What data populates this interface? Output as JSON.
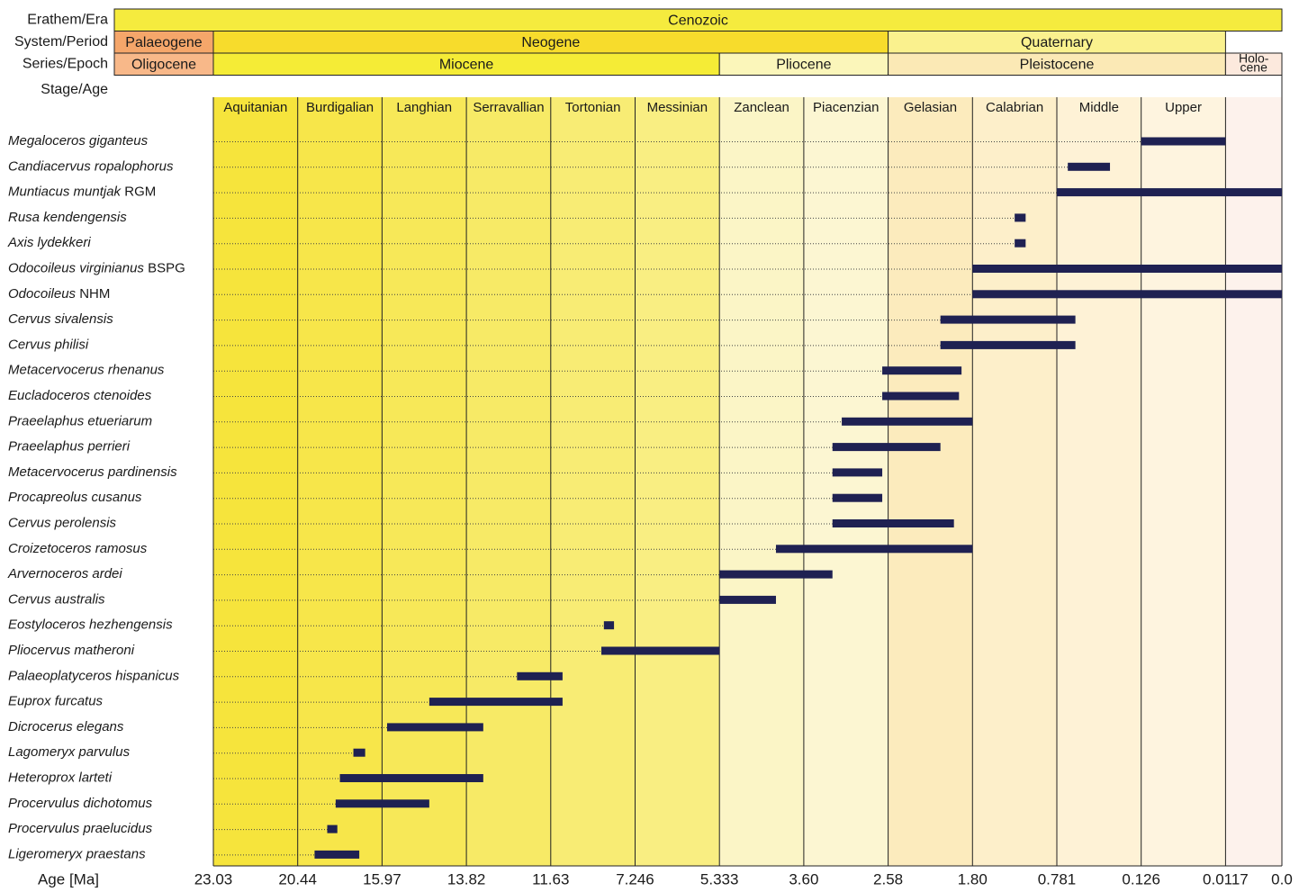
{
  "chart_data": {
    "type": "timeline-bar",
    "header": {
      "row_labels": [
        "Erathem/Era",
        "System/Period",
        "Series/Epoch",
        "Stage/Age"
      ],
      "era": {
        "label": "Cenozoic",
        "color": "#f5eb3e"
      },
      "periods": [
        {
          "label": "Palaeogene",
          "from": -1,
          "to": 0,
          "color": "#f5a66a"
        },
        {
          "label": "Neogene",
          "from": 0,
          "to": 8,
          "color": "#f7dc2c"
        },
        {
          "label": "Quaternary",
          "from": 8,
          "to": 12,
          "color": "#faf18e"
        }
      ],
      "epochs": [
        {
          "label": "Oligocene",
          "from": -1,
          "to": 0,
          "color": "#f8b889"
        },
        {
          "label": "Miocene",
          "from": 0,
          "to": 6,
          "color": "#f5ec36"
        },
        {
          "label": "Pliocene",
          "from": 6,
          "to": 8,
          "color": "#fbf6ba"
        },
        {
          "label": "Pleistocene",
          "from": 8,
          "to": 12,
          "color": "#fbe9b5"
        },
        {
          "label": "Holo-\ncene",
          "from": 12,
          "to": 12.7,
          "color": "#fce9dd"
        }
      ]
    },
    "stages": [
      {
        "label": "Aquitanian",
        "color": "#f6e43c"
      },
      {
        "label": "Burdigalian",
        "color": "#f7e64a"
      },
      {
        "label": "Langhian",
        "color": "#f7e858"
      },
      {
        "label": "Serravallian",
        "color": "#f7ea66"
      },
      {
        "label": "Tortonian",
        "color": "#f8ec74"
      },
      {
        "label": "Messinian",
        "color": "#f9ee82"
      },
      {
        "label": "Zanclean",
        "color": "#fbf5c6"
      },
      {
        "label": "Piacenzian",
        "color": "#fcf6d2"
      },
      {
        "label": "Gelasian",
        "color": "#fcebbd"
      },
      {
        "label": "Calabrian",
        "color": "#fdefca"
      },
      {
        "label": "Middle",
        "color": "#fef2d6"
      },
      {
        "label": "Upper",
        "color": "#fef4df"
      },
      {
        "label": "",
        "color": "#fdf2ec"
      }
    ],
    "x_axis_label": "Age [Ma]",
    "x_ticks": [
      "23.03",
      "20.44",
      "15.97",
      "13.82",
      "11.63",
      "7.246",
      "5.333",
      "3.60",
      "2.58",
      "1.80",
      "0.781",
      "0.126",
      "0.0117",
      "0.0"
    ],
    "series": [
      {
        "taxon": "Megaloceros giganteus",
        "suffix": "",
        "start": 11.0,
        "end": 12.0
      },
      {
        "taxon": "Candiacervus ropalophorus",
        "suffix": "",
        "start": 10.13,
        "end": 10.63
      },
      {
        "taxon": "Muntiacus muntjak",
        "suffix": "RGM",
        "start": 10.0,
        "end": 12.7
      },
      {
        "taxon": "Rusa kendengensis",
        "suffix": "",
        "start": 9.5,
        "end": 9.63
      },
      {
        "taxon": "Axis lydekkeri",
        "suffix": "",
        "start": 9.5,
        "end": 9.63
      },
      {
        "taxon": "Odocoileus virginianus",
        "suffix": "BSPG",
        "start": 9.0,
        "end": 12.7
      },
      {
        "taxon": "Odocoileus",
        "suffix": "NHM",
        "start": 9.0,
        "end": 12.7
      },
      {
        "taxon": "Cervus sivalensis",
        "suffix": "",
        "start": 8.62,
        "end": 10.22
      },
      {
        "taxon": "Cervus philisi",
        "suffix": "",
        "start": 8.62,
        "end": 10.22
      },
      {
        "taxon": "Metacervocerus rhenanus",
        "suffix": "",
        "start": 7.93,
        "end": 8.87
      },
      {
        "taxon": "Eucladoceros ctenoides",
        "suffix": "",
        "start": 7.93,
        "end": 8.84
      },
      {
        "taxon": "Praeelaphus etueriarum",
        "suffix": "",
        "start": 7.45,
        "end": 9.0
      },
      {
        "taxon": "Praeelaphus perrieri",
        "suffix": "",
        "start": 7.34,
        "end": 8.62
      },
      {
        "taxon": "Metacervocerus pardinensis",
        "suffix": "",
        "start": 7.34,
        "end": 7.93
      },
      {
        "taxon": "Procapreolus cusanus",
        "suffix": "",
        "start": 7.34,
        "end": 7.93
      },
      {
        "taxon": "Cervus perolensis",
        "suffix": "",
        "start": 7.34,
        "end": 8.78
      },
      {
        "taxon": "Croizetoceros ramosus",
        "suffix": "",
        "start": 6.67,
        "end": 9.0
      },
      {
        "taxon": "Arvernoceros ardei",
        "suffix": "",
        "start": 6.0,
        "end": 7.34
      },
      {
        "taxon": "Cervus australis",
        "suffix": "",
        "start": 6.0,
        "end": 6.67
      },
      {
        "taxon": "Eostyloceros hezhengensis",
        "suffix": "",
        "start": 4.63,
        "end": 4.75
      },
      {
        "taxon": "Pliocervus matheroni",
        "suffix": "",
        "start": 4.6,
        "end": 6.0
      },
      {
        "taxon": "Palaeoplatyceros hispanicus",
        "suffix": "",
        "start": 3.6,
        "end": 4.14
      },
      {
        "taxon": "Euprox furcatus",
        "suffix": "",
        "start": 2.56,
        "end": 4.14
      },
      {
        "taxon": "Dicrocerus elegans",
        "suffix": "",
        "start": 2.06,
        "end": 3.2
      },
      {
        "taxon": "Lagomeryx parvulus",
        "suffix": "",
        "start": 1.66,
        "end": 1.8
      },
      {
        "taxon": "Heteroprox larteti",
        "suffix": "",
        "start": 1.5,
        "end": 3.2
      },
      {
        "taxon": "Procervulus dichotomus",
        "suffix": "",
        "start": 1.45,
        "end": 2.56
      },
      {
        "taxon": "Procervulus praelucidus",
        "suffix": "",
        "start": 1.35,
        "end": 1.47
      },
      {
        "taxon": "Ligeromeryx praestans",
        "suffix": "",
        "start": 1.2,
        "end": 1.73
      }
    ],
    "bar_color": "#1f2152"
  }
}
